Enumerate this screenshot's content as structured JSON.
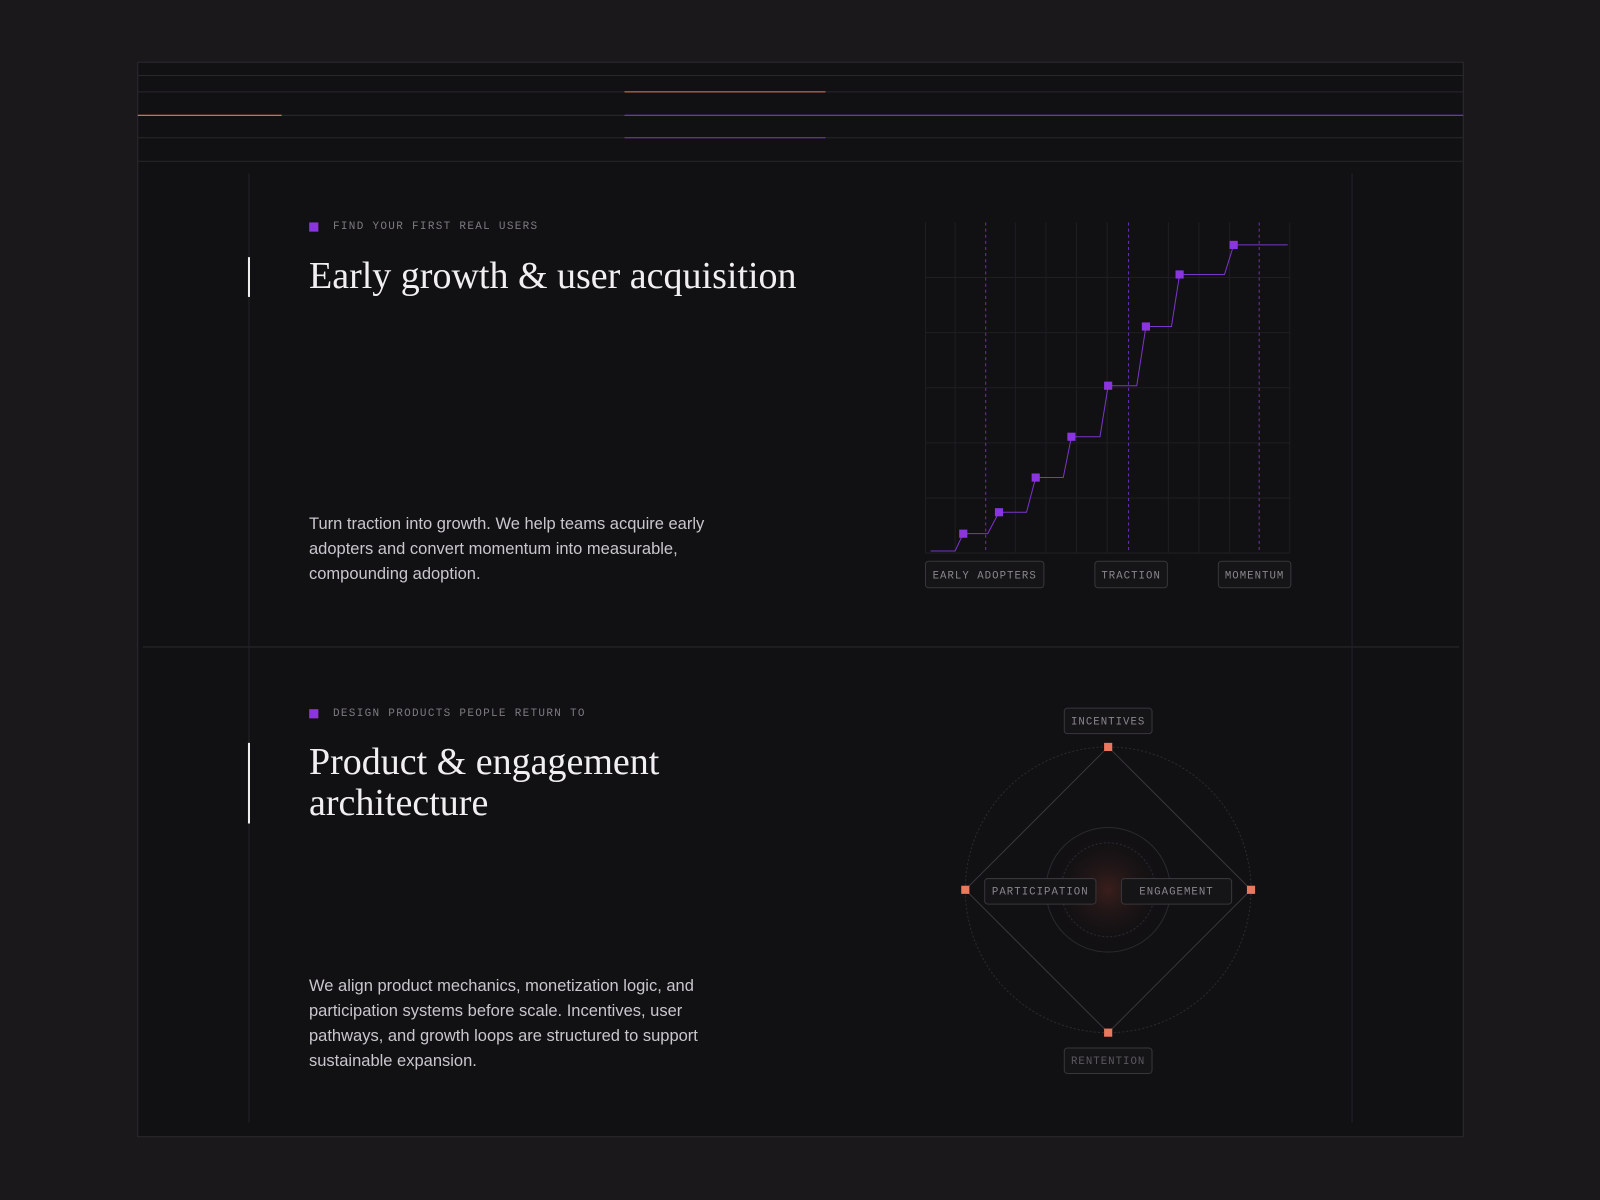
{
  "sections": [
    {
      "eyebrow": "FIND YOUR FIRST REAL USERS",
      "title": "Early growth & user acquisition",
      "body": "Turn traction into growth. We help teams acquire early adopters and convert momentum into measurable, compounding adoption.",
      "labels": [
        "EARLY ADOPTERS",
        "TRACTION",
        "MOMENTUM"
      ]
    },
    {
      "eyebrow": "DESIGN PRODUCTS PEOPLE RETURN TO",
      "title": "Product & engagement architecture",
      "body": "We align product mechanics, monetization logic, and participation systems before scale. Incentives, user pathways, and growth loops are structured to support sustainable expansion.",
      "labels": [
        "INCENTIVES",
        "PARTICIPATION",
        "ENGAGEMENT",
        "RENTENTION"
      ]
    }
  ]
}
